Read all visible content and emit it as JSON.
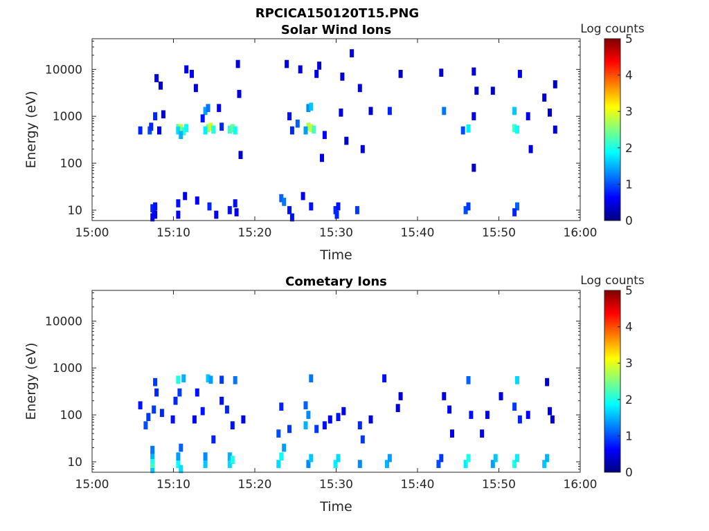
{
  "figure_title": "RPCICA150120T15.PNG",
  "colormap": [
    "#000080",
    "#0000ff",
    "#0080ff",
    "#00ffff",
    "#80ff80",
    "#ffff00",
    "#ff8000",
    "#ff0000",
    "#800000"
  ],
  "chart_data": [
    {
      "type": "heatmap",
      "title": "Solar Wind Ions",
      "xlabel": "Time",
      "ylabel": "Energy (eV)",
      "xlim": [
        "15:00",
        "16:00"
      ],
      "xticks": [
        "15:00",
        "15:10",
        "15:20",
        "15:30",
        "15:40",
        "15:50",
        "16:00"
      ],
      "ylim": [
        6,
        45000
      ],
      "yscale": "log",
      "yticks": [
        {
          "value": 10,
          "label": "10"
        },
        {
          "value": 100,
          "label": "100"
        },
        {
          "value": 1000,
          "label": "1000"
        },
        {
          "value": 10000,
          "label": "10000"
        }
      ],
      "colorbar": {
        "label": "Log counts",
        "range": [
          0,
          5
        ],
        "ticks": [
          "0",
          "1",
          "2",
          "3",
          "4",
          "5"
        ]
      },
      "cells": [
        {
          "t": "15:07:10",
          "e": 7,
          "v": 0.6
        },
        {
          "t": "15:07:20",
          "e": 9,
          "v": 0.6
        },
        {
          "t": "15:07:10",
          "e": 11,
          "v": 0.8
        },
        {
          "t": "15:07:30",
          "e": 12,
          "v": 0.7
        },
        {
          "t": "15:07:30",
          "e": 8,
          "v": 0.5
        },
        {
          "t": "15:05:40",
          "e": 500,
          "v": 0.8
        },
        {
          "t": "15:06:50",
          "e": 500,
          "v": 1.0
        },
        {
          "t": "15:07:00",
          "e": 600,
          "v": 0.8
        },
        {
          "t": "15:07:30",
          "e": 1000,
          "v": 0.8
        },
        {
          "t": "15:08:00",
          "e": 500,
          "v": 0.6
        },
        {
          "t": "15:07:40",
          "e": 6500,
          "v": 0.5
        },
        {
          "t": "15:08:10",
          "e": 4500,
          "v": 0.4
        },
        {
          "t": "15:08:30",
          "e": 1100,
          "v": 0.5
        },
        {
          "t": "15:10:20",
          "e": 560,
          "v": 2.3
        },
        {
          "t": "15:10:40",
          "e": 560,
          "v": 2.8
        },
        {
          "t": "15:11:00",
          "e": 480,
          "v": 2.1
        },
        {
          "t": "15:10:20",
          "e": 500,
          "v": 1.7
        },
        {
          "t": "15:10:40",
          "e": 400,
          "v": 1.5
        },
        {
          "t": "15:11:20",
          "e": 560,
          "v": 1.9
        },
        {
          "t": "15:10:20",
          "e": 14,
          "v": 0.7
        },
        {
          "t": "15:10:20",
          "e": 8,
          "v": 0.6
        },
        {
          "t": "15:11:10",
          "e": 20,
          "v": 0.5
        },
        {
          "t": "15:11:20",
          "e": 10000,
          "v": 0.5
        },
        {
          "t": "15:12:00",
          "e": 8000,
          "v": 0.6
        },
        {
          "t": "15:12:30",
          "e": 4000,
          "v": 0.4
        },
        {
          "t": "15:14:00",
          "e": 560,
          "v": 2.6
        },
        {
          "t": "15:14:20",
          "e": 600,
          "v": 2.9
        },
        {
          "t": "15:13:40",
          "e": 500,
          "v": 1.8
        },
        {
          "t": "15:14:40",
          "e": 520,
          "v": 2.0
        },
        {
          "t": "15:13:40",
          "e": 1300,
          "v": 1.4
        },
        {
          "t": "15:14:00",
          "e": 1500,
          "v": 1.2
        },
        {
          "t": "15:12:40",
          "e": 16,
          "v": 0.6
        },
        {
          "t": "15:13:20",
          "e": 900,
          "v": 0.7
        },
        {
          "t": "15:14:10",
          "e": 12,
          "v": 0.8
        },
        {
          "t": "15:15:00",
          "e": 8,
          "v": 0.6
        },
        {
          "t": "15:15:20",
          "e": 1500,
          "v": 0.6
        },
        {
          "t": "15:15:40",
          "e": 600,
          "v": 0.8
        },
        {
          "t": "15:16:40",
          "e": 520,
          "v": 2.1
        },
        {
          "t": "15:17:00",
          "e": 560,
          "v": 2.4
        },
        {
          "t": "15:17:20",
          "e": 500,
          "v": 1.9
        },
        {
          "t": "15:16:40",
          "e": 10,
          "v": 0.7
        },
        {
          "t": "15:17:20",
          "e": 14,
          "v": 0.7
        },
        {
          "t": "15:17:30",
          "e": 9,
          "v": 0.6
        },
        {
          "t": "15:17:40",
          "e": 13000,
          "v": 0.5
        },
        {
          "t": "15:17:50",
          "e": 3000,
          "v": 0.5
        },
        {
          "t": "15:18:00",
          "e": 150,
          "v": 0.4
        },
        {
          "t": "15:23:00",
          "e": 18,
          "v": 1.1
        },
        {
          "t": "15:23:20",
          "e": 15,
          "v": 1.2
        },
        {
          "t": "15:24:00",
          "e": 10,
          "v": 0.7
        },
        {
          "t": "15:24:20",
          "e": 7,
          "v": 0.7
        },
        {
          "t": "15:23:40",
          "e": 13000,
          "v": 0.5
        },
        {
          "t": "15:24:00",
          "e": 1000,
          "v": 0.7
        },
        {
          "t": "15:24:20",
          "e": 500,
          "v": 0.8
        },
        {
          "t": "15:25:00",
          "e": 700,
          "v": 1.1
        },
        {
          "t": "15:25:20",
          "e": 10000,
          "v": 0.5
        },
        {
          "t": "15:26:20",
          "e": 600,
          "v": 2.7
        },
        {
          "t": "15:26:40",
          "e": 560,
          "v": 2.9
        },
        {
          "t": "15:27:00",
          "e": 520,
          "v": 2.2
        },
        {
          "t": "15:26:20",
          "e": 1500,
          "v": 1.3
        },
        {
          "t": "15:26:40",
          "e": 1600,
          "v": 1.6
        },
        {
          "t": "15:26:00",
          "e": 500,
          "v": 1.4
        },
        {
          "t": "15:25:40",
          "e": 20,
          "v": 0.6
        },
        {
          "t": "15:26:40",
          "e": 12,
          "v": 0.7
        },
        {
          "t": "15:27:40",
          "e": 12000,
          "v": 0.4
        },
        {
          "t": "15:27:20",
          "e": 8000,
          "v": 0.5
        },
        {
          "t": "15:28:00",
          "e": 130,
          "v": 0.5
        },
        {
          "t": "15:28:20",
          "e": 400,
          "v": 0.6
        },
        {
          "t": "15:29:40",
          "e": 10,
          "v": 0.8
        },
        {
          "t": "15:29:50",
          "e": 8,
          "v": 0.8
        },
        {
          "t": "15:30:00",
          "e": 12,
          "v": 0.7
        },
        {
          "t": "15:30:30",
          "e": 7000,
          "v": 0.4
        },
        {
          "t": "15:30:20",
          "e": 1200,
          "v": 0.5
        },
        {
          "t": "15:31:00",
          "e": 300,
          "v": 0.4
        },
        {
          "t": "15:31:40",
          "e": 22000,
          "v": 0.5
        },
        {
          "t": "15:32:20",
          "e": 10,
          "v": 0.9
        },
        {
          "t": "15:32:40",
          "e": 4000,
          "v": 0.5
        },
        {
          "t": "15:33:00",
          "e": 200,
          "v": 0.5
        },
        {
          "t": "15:34:00",
          "e": 1300,
          "v": 0.4
        },
        {
          "t": "15:36:20",
          "e": 1300,
          "v": 0.8
        },
        {
          "t": "15:37:40",
          "e": 8000,
          "v": 0.3
        },
        {
          "t": "15:43:00",
          "e": 1300,
          "v": 1.2
        },
        {
          "t": "15:42:40",
          "e": 8500,
          "v": 0.4
        },
        {
          "t": "15:45:40",
          "e": 10,
          "v": 1.0
        },
        {
          "t": "15:46:00",
          "e": 12,
          "v": 0.9
        },
        {
          "t": "15:45:20",
          "e": 500,
          "v": 1.0
        },
        {
          "t": "15:46:00",
          "e": 550,
          "v": 1.8
        },
        {
          "t": "15:46:40",
          "e": 1000,
          "v": 0.5
        },
        {
          "t": "15:46:40",
          "e": 9000,
          "v": 0.4
        },
        {
          "t": "15:47:00",
          "e": 3500,
          "v": 0.4
        },
        {
          "t": "15:46:40",
          "e": 80,
          "v": 0.4
        },
        {
          "t": "15:49:00",
          "e": 3500,
          "v": 0.4
        },
        {
          "t": "15:51:40",
          "e": 560,
          "v": 2.2
        },
        {
          "t": "15:52:00",
          "e": 520,
          "v": 1.9
        },
        {
          "t": "15:51:40",
          "e": 1300,
          "v": 1.6
        },
        {
          "t": "15:52:00",
          "e": 12,
          "v": 1.1
        },
        {
          "t": "15:51:40",
          "e": 9,
          "v": 0.8
        },
        {
          "t": "15:52:20",
          "e": 8000,
          "v": 0.5
        },
        {
          "t": "15:53:20",
          "e": 1000,
          "v": 0.5
        },
        {
          "t": "15:53:40",
          "e": 200,
          "v": 0.4
        },
        {
          "t": "15:55:20",
          "e": 2500,
          "v": 0.4
        },
        {
          "t": "15:56:00",
          "e": 1200,
          "v": 0.4
        },
        {
          "t": "15:56:40",
          "e": 4800,
          "v": 0.4
        },
        {
          "t": "15:56:40",
          "e": 520,
          "v": 0.5
        }
      ]
    },
    {
      "type": "heatmap",
      "title": "Cometary Ions",
      "xlabel": "Time",
      "ylabel": "Energy (eV)",
      "xlim": [
        "15:00",
        "16:00"
      ],
      "xticks": [
        "15:00",
        "15:10",
        "15:20",
        "15:30",
        "15:40",
        "15:50",
        "16:00"
      ],
      "ylim": [
        6,
        45000
      ],
      "yscale": "log",
      "yticks": [
        {
          "value": 10,
          "label": "10"
        },
        {
          "value": 100,
          "label": "100"
        },
        {
          "value": 1000,
          "label": "1000"
        },
        {
          "value": 10000,
          "label": "10000"
        }
      ],
      "colorbar": {
        "label": "Log counts",
        "range": [
          0,
          5
        ],
        "ticks": [
          "0",
          "1",
          "2",
          "3",
          "4",
          "5"
        ]
      },
      "cells": [
        {
          "t": "15:07:10",
          "e": 7,
          "v": 1.6
        },
        {
          "t": "15:07:10",
          "e": 9,
          "v": 2.2
        },
        {
          "t": "15:07:10",
          "e": 11,
          "v": 2.0
        },
        {
          "t": "15:07:10",
          "e": 14,
          "v": 1.5
        },
        {
          "t": "15:07:10",
          "e": 18,
          "v": 1.2
        },
        {
          "t": "15:06:20",
          "e": 60,
          "v": 1.0
        },
        {
          "t": "15:06:40",
          "e": 90,
          "v": 0.9
        },
        {
          "t": "15:05:40",
          "e": 160,
          "v": 0.7
        },
        {
          "t": "15:07:20",
          "e": 130,
          "v": 0.9
        },
        {
          "t": "15:07:40",
          "e": 300,
          "v": 0.8
        },
        {
          "t": "15:07:30",
          "e": 500,
          "v": 0.9
        },
        {
          "t": "15:08:20",
          "e": 110,
          "v": 0.8
        },
        {
          "t": "15:10:20",
          "e": 9,
          "v": 1.9
        },
        {
          "t": "15:10:40",
          "e": 7,
          "v": 1.7
        },
        {
          "t": "15:10:20",
          "e": 13,
          "v": 1.4
        },
        {
          "t": "15:10:40",
          "e": 20,
          "v": 1.1
        },
        {
          "t": "15:10:00",
          "e": 200,
          "v": 0.8
        },
        {
          "t": "15:10:30",
          "e": 300,
          "v": 0.9
        },
        {
          "t": "15:10:20",
          "e": 560,
          "v": 2.0
        },
        {
          "t": "15:11:00",
          "e": 600,
          "v": 1.5
        },
        {
          "t": "15:09:40",
          "e": 80,
          "v": 0.7
        },
        {
          "t": "15:13:40",
          "e": 9,
          "v": 1.6
        },
        {
          "t": "15:13:40",
          "e": 13,
          "v": 1.3
        },
        {
          "t": "15:14:00",
          "e": 600,
          "v": 1.6
        },
        {
          "t": "15:14:20",
          "e": 560,
          "v": 1.4
        },
        {
          "t": "15:14:40",
          "e": 30,
          "v": 0.8
        },
        {
          "t": "15:13:20",
          "e": 120,
          "v": 0.7
        },
        {
          "t": "15:15:40",
          "e": 560,
          "v": 0.9
        },
        {
          "t": "15:12:40",
          "e": 300,
          "v": 0.7
        },
        {
          "t": "15:12:20",
          "e": 80,
          "v": 0.6
        },
        {
          "t": "15:16:40",
          "e": 9,
          "v": 1.7
        },
        {
          "t": "15:16:40",
          "e": 13,
          "v": 1.5
        },
        {
          "t": "15:17:00",
          "e": 11,
          "v": 2.0
        },
        {
          "t": "15:17:20",
          "e": 550,
          "v": 1.2
        },
        {
          "t": "15:16:20",
          "e": 130,
          "v": 0.8
        },
        {
          "t": "15:17:00",
          "e": 60,
          "v": 0.7
        },
        {
          "t": "15:18:20",
          "e": 80,
          "v": 0.6
        },
        {
          "t": "15:15:40",
          "e": 200,
          "v": 0.7
        },
        {
          "t": "15:22:40",
          "e": 9,
          "v": 1.7
        },
        {
          "t": "15:23:00",
          "e": 13,
          "v": 1.9
        },
        {
          "t": "15:23:20",
          "e": 20,
          "v": 1.4
        },
        {
          "t": "15:22:40",
          "e": 40,
          "v": 1.0
        },
        {
          "t": "15:23:00",
          "e": 150,
          "v": 0.8
        },
        {
          "t": "15:24:00",
          "e": 50,
          "v": 0.9
        },
        {
          "t": "15:26:00",
          "e": 60,
          "v": 1.5
        },
        {
          "t": "15:26:20",
          "e": 100,
          "v": 1.3
        },
        {
          "t": "15:26:00",
          "e": 160,
          "v": 1.1
        },
        {
          "t": "15:26:40",
          "e": 600,
          "v": 1.2
        },
        {
          "t": "15:26:20",
          "e": 9,
          "v": 1.3
        },
        {
          "t": "15:26:40",
          "e": 12,
          "v": 1.6
        },
        {
          "t": "15:27:20",
          "e": 50,
          "v": 0.9
        },
        {
          "t": "15:28:20",
          "e": 60,
          "v": 0.7
        },
        {
          "t": "15:29:00",
          "e": 80,
          "v": 0.6
        },
        {
          "t": "15:29:40",
          "e": 9,
          "v": 1.8
        },
        {
          "t": "15:30:00",
          "e": 12,
          "v": 1.7
        },
        {
          "t": "15:30:00",
          "e": 90,
          "v": 0.7
        },
        {
          "t": "15:30:40",
          "e": 120,
          "v": 0.6
        },
        {
          "t": "15:32:40",
          "e": 9,
          "v": 1.3
        },
        {
          "t": "15:32:40",
          "e": 60,
          "v": 0.8
        },
        {
          "t": "15:33:00",
          "e": 30,
          "v": 0.9
        },
        {
          "t": "15:34:00",
          "e": 80,
          "v": 0.5
        },
        {
          "t": "15:36:00",
          "e": 9,
          "v": 1.5
        },
        {
          "t": "15:36:20",
          "e": 12,
          "v": 1.4
        },
        {
          "t": "15:35:40",
          "e": 600,
          "v": 0.7
        },
        {
          "t": "15:37:40",
          "e": 250,
          "v": 0.4
        },
        {
          "t": "15:37:20",
          "e": 140,
          "v": 0.4
        },
        {
          "t": "15:42:20",
          "e": 9,
          "v": 1.0
        },
        {
          "t": "15:42:40",
          "e": 12,
          "v": 0.9
        },
        {
          "t": "15:43:00",
          "e": 250,
          "v": 0.5
        },
        {
          "t": "15:44:00",
          "e": 40,
          "v": 0.5
        },
        {
          "t": "15:43:40",
          "e": 130,
          "v": 0.6
        },
        {
          "t": "15:45:40",
          "e": 9,
          "v": 1.8
        },
        {
          "t": "15:46:00",
          "e": 12,
          "v": 2.0
        },
        {
          "t": "15:46:00",
          "e": 550,
          "v": 1.1
        },
        {
          "t": "15:46:20",
          "e": 100,
          "v": 0.7
        },
        {
          "t": "15:47:40",
          "e": 40,
          "v": 0.6
        },
        {
          "t": "15:48:20",
          "e": 100,
          "v": 0.6
        },
        {
          "t": "15:49:00",
          "e": 9,
          "v": 1.4
        },
        {
          "t": "15:49:20",
          "e": 12,
          "v": 1.6
        },
        {
          "t": "15:50:00",
          "e": 250,
          "v": 0.5
        },
        {
          "t": "15:51:40",
          "e": 9,
          "v": 2.0
        },
        {
          "t": "15:52:00",
          "e": 12,
          "v": 1.8
        },
        {
          "t": "15:51:40",
          "e": 150,
          "v": 0.9
        },
        {
          "t": "15:52:00",
          "e": 550,
          "v": 1.7
        },
        {
          "t": "15:52:20",
          "e": 80,
          "v": 0.8
        },
        {
          "t": "15:53:20",
          "e": 100,
          "v": 0.6
        },
        {
          "t": "15:55:20",
          "e": 9,
          "v": 1.6
        },
        {
          "t": "15:55:40",
          "e": 12,
          "v": 1.5
        },
        {
          "t": "15:56:00",
          "e": 120,
          "v": 0.5
        },
        {
          "t": "15:56:20",
          "e": 80,
          "v": 0.4
        },
        {
          "t": "15:55:40",
          "e": 500,
          "v": 0.4
        }
      ]
    }
  ]
}
